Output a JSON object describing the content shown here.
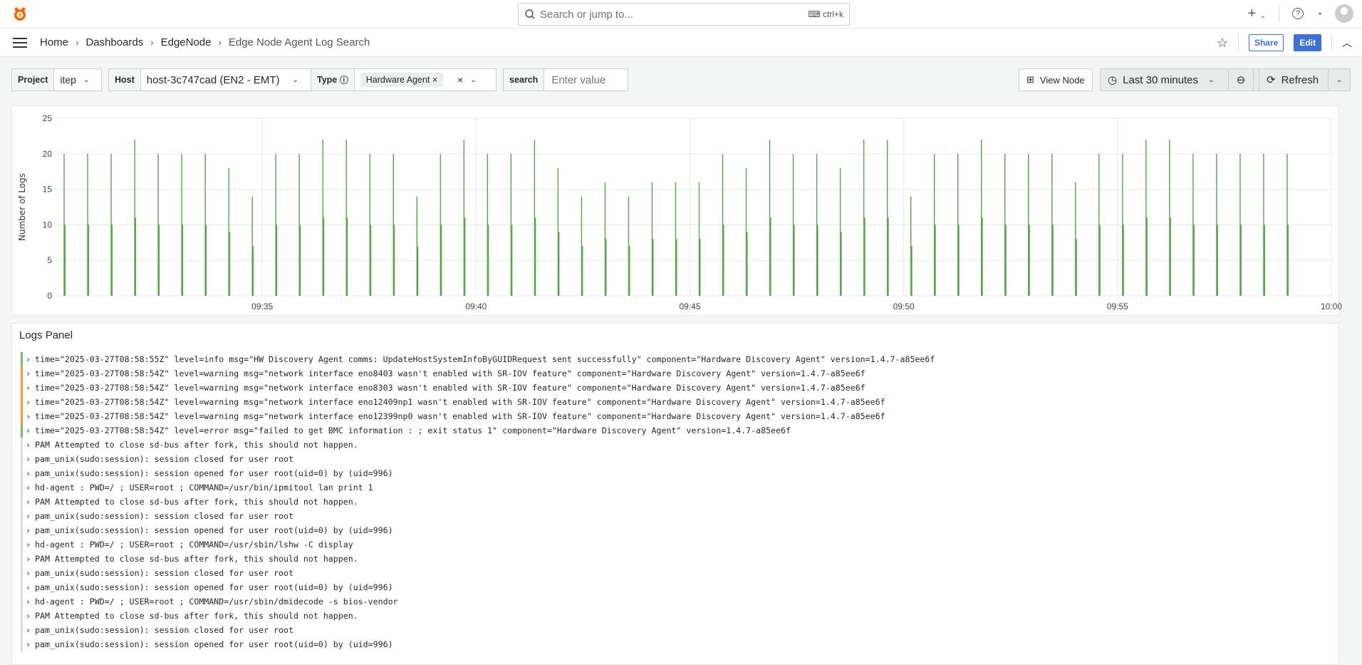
{
  "topbar": {
    "search_placeholder": "Search or jump to...",
    "shortcut": "ctrl+k",
    "icons": [
      "grafana-logo-icon",
      "search-icon",
      "keyboard-icon",
      "plus-icon",
      "help-icon",
      "news-rss-icon",
      "user-avatar-icon"
    ]
  },
  "breadcrumb": [
    "Home",
    "Dashboards",
    "EdgeNode",
    "Edge Node Agent Log Search"
  ],
  "nav": {
    "share": "Share",
    "edit": "Edit",
    "accent": "#3d71d9"
  },
  "variables": {
    "project": {
      "label": "Project",
      "value": "itep"
    },
    "host": {
      "label": "Host",
      "value": "host-3c747cad (EN2 - EMT)"
    },
    "type": {
      "label": "Type",
      "chip": "Hardware Agent"
    },
    "search": {
      "label": "search",
      "placeholder": "Enter value"
    }
  },
  "toolbar": {
    "view_node": "View Node",
    "time_range": "Last 30 minutes",
    "refresh": "Refresh"
  },
  "chart_data": {
    "type": "bar",
    "ylabel": "Number of Logs",
    "ylim": [
      0,
      25
    ],
    "yticks": [
      "0",
      "5",
      "10",
      "15",
      "20",
      "25"
    ],
    "xlim": [
      "09:30:11",
      "10:00:02"
    ],
    "xticks": [
      "09:35",
      "09:40",
      "09:45",
      "09:50",
      "09:55",
      "10:00"
    ],
    "grid": true,
    "color": "#56a64b",
    "x": [
      "09:30:22",
      "09:30:55",
      "09:31:28",
      "09:32:01",
      "09:32:34",
      "09:33:07",
      "09:33:40",
      "09:34:13",
      "09:34:46",
      "09:35:19",
      "09:35:52",
      "09:36:25",
      "09:36:58",
      "09:37:31",
      "09:38:04",
      "09:38:37",
      "09:39:10",
      "09:39:43",
      "09:40:16",
      "09:40:49",
      "09:41:22",
      "09:41:55",
      "09:42:28",
      "09:43:01",
      "09:43:34",
      "09:44:07",
      "09:44:40",
      "09:45:13",
      "09:45:46",
      "09:46:19",
      "09:46:52",
      "09:47:25",
      "09:47:58",
      "09:48:31",
      "09:49:04",
      "09:49:37",
      "09:50:10",
      "09:50:43",
      "09:51:16",
      "09:51:49",
      "09:52:22",
      "09:52:55",
      "09:53:28",
      "09:54:01",
      "09:54:34",
      "09:55:07",
      "09:55:40",
      "09:56:13",
      "09:56:46",
      "09:57:19",
      "09:57:52",
      "09:58:25",
      "09:58:58"
    ],
    "values": [
      20,
      20,
      20,
      22,
      20,
      20,
      20,
      18,
      14,
      20,
      20,
      22,
      22,
      20,
      20,
      14,
      20,
      22,
      20,
      20,
      22,
      18,
      14,
      16,
      14,
      16,
      16,
      16,
      20,
      18,
      22,
      20,
      20,
      18,
      22,
      22,
      14,
      20,
      20,
      22,
      20,
      20,
      20,
      16,
      20,
      20,
      22,
      22,
      20,
      20,
      20,
      20,
      20
    ]
  },
  "logs": {
    "title": "Logs Panel",
    "level_colors": {
      "info": "#73bf69",
      "warning": "#ff9830",
      "error": "#73bf69",
      "none": "#dcdcdc"
    },
    "lines": [
      {
        "level": "info",
        "text": "time=\"2025-03-27T08:58:55Z\" level=info msg=\"HW Discovery Agent comms: UpdateHostSystemInfoByGUIDRequest sent successfully\" component=\"Hardware Discovery Agent\" version=1.4.7-a85ee6f"
      },
      {
        "level": "warning",
        "text": "time=\"2025-03-27T08:58:54Z\" level=warning msg=\"network interface eno8403 wasn't enabled with SR-IOV feature\" component=\"Hardware Discovery Agent\" version=1.4.7-a85ee6f"
      },
      {
        "level": "warning",
        "text": "time=\"2025-03-27T08:58:54Z\" level=warning msg=\"network interface eno8303 wasn't enabled with SR-IOV feature\" component=\"Hardware Discovery Agent\" version=1.4.7-a85ee6f"
      },
      {
        "level": "warning",
        "text": "time=\"2025-03-27T08:58:54Z\" level=warning msg=\"network interface eno12409np1 wasn't enabled with SR-IOV feature\" component=\"Hardware Discovery Agent\" version=1.4.7-a85ee6f"
      },
      {
        "level": "warning",
        "text": "time=\"2025-03-27T08:58:54Z\" level=warning msg=\"network interface eno12399np0 wasn't enabled with SR-IOV feature\" component=\"Hardware Discovery Agent\" version=1.4.7-a85ee6f"
      },
      {
        "level": "error",
        "text": "time=\"2025-03-27T08:58:54Z\" level=error msg=\"failed to get BMC information : ; exit status 1\" component=\"Hardware Discovery Agent\" version=1.4.7-a85ee6f"
      },
      {
        "level": "none",
        "text": "PAM Attempted to close sd-bus after fork, this should not happen."
      },
      {
        "level": "none",
        "text": "pam_unix(sudo:session): session closed for user root"
      },
      {
        "level": "none",
        "text": "pam_unix(sudo:session): session opened for user root(uid=0) by (uid=996)"
      },
      {
        "level": "none",
        "text": "hd-agent : PWD=/ ; USER=root ; COMMAND=/usr/bin/ipmitool lan print 1"
      },
      {
        "level": "none",
        "text": "PAM Attempted to close sd-bus after fork, this should not happen."
      },
      {
        "level": "none",
        "text": "pam_unix(sudo:session): session closed for user root"
      },
      {
        "level": "none",
        "text": "pam_unix(sudo:session): session opened for user root(uid=0) by (uid=996)"
      },
      {
        "level": "none",
        "text": "hd-agent : PWD=/ ; USER=root ; COMMAND=/usr/sbin/lshw -C display"
      },
      {
        "level": "none",
        "text": "PAM Attempted to close sd-bus after fork, this should not happen."
      },
      {
        "level": "none",
        "text": "pam_unix(sudo:session): session closed for user root"
      },
      {
        "level": "none",
        "text": "pam_unix(sudo:session): session opened for user root(uid=0) by (uid=996)"
      },
      {
        "level": "none",
        "text": "hd-agent : PWD=/ ; USER=root ; COMMAND=/usr/sbin/dmidecode -s bios-vendor"
      },
      {
        "level": "none",
        "text": "PAM Attempted to close sd-bus after fork, this should not happen."
      },
      {
        "level": "none",
        "text": "pam_unix(sudo:session): session closed for user root"
      },
      {
        "level": "none",
        "text": "pam_unix(sudo:session): session opened for user root(uid=0) by (uid=996)"
      }
    ]
  }
}
